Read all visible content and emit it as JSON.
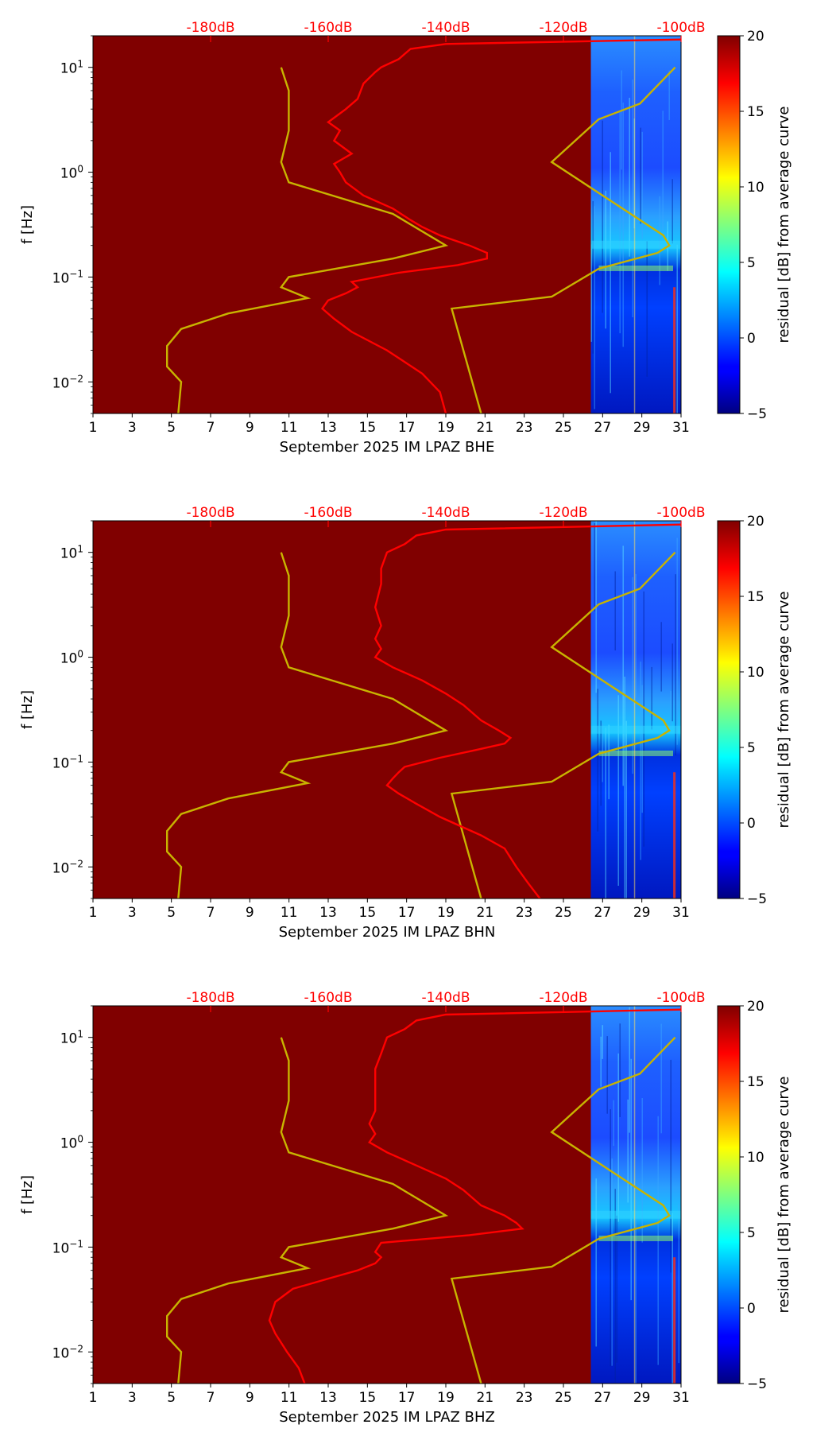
{
  "chart_data": [
    {
      "type": "heatmap",
      "xlabel": "September 2025 IM LPAZ  BHE",
      "ylabel": "f [Hz]",
      "colorbar_label": "residual [dB] from average curve",
      "xlim": [
        1,
        31
      ],
      "ylim": [
        0.005,
        20
      ],
      "yscale": "log",
      "x_ticks": [
        "1",
        "3",
        "5",
        "7",
        "9",
        "11",
        "13",
        "15",
        "17",
        "19",
        "21",
        "23",
        "25",
        "27",
        "29",
        "31"
      ],
      "y_ticks": [
        "10^-2",
        "10^-1",
        "10^0",
        "10^1"
      ],
      "colorbar": {
        "min": -5,
        "max": 20,
        "ticks": [
          "20",
          "15",
          "10",
          "5",
          "0",
          "−5"
        ]
      },
      "top_axis": {
        "ticks": [
          "-180dB",
          "-160dB",
          "-140dB",
          "-120dB",
          "-100dB"
        ],
        "values": [
          -180,
          -160,
          -140,
          -120,
          -100
        ],
        "xlim": [
          -200,
          -100
        ],
        "color": "#ff0000"
      },
      "data_start_day": 26.4,
      "median_psd": [
        [
          18.5,
          -99
        ],
        [
          16.7,
          -140
        ],
        [
          15,
          -146
        ],
        [
          12,
          -148
        ],
        [
          10,
          -151
        ],
        [
          9,
          -152
        ],
        [
          7,
          -154
        ],
        [
          5,
          -155
        ],
        [
          4,
          -157
        ],
        [
          3,
          -160
        ],
        [
          2.5,
          -158
        ],
        [
          2,
          -159
        ],
        [
          1.5,
          -156
        ],
        [
          1.2,
          -159
        ],
        [
          1,
          -158
        ],
        [
          0.8,
          -157
        ],
        [
          0.6,
          -154
        ],
        [
          0.45,
          -149
        ],
        [
          0.35,
          -146
        ],
        [
          0.3,
          -144
        ],
        [
          0.25,
          -141
        ],
        [
          0.2,
          -136
        ],
        [
          0.17,
          -133
        ],
        [
          0.15,
          -133
        ],
        [
          0.13,
          -138
        ],
        [
          0.11,
          -148
        ],
        [
          0.09,
          -156
        ],
        [
          0.08,
          -155
        ],
        [
          0.07,
          -157
        ],
        [
          0.06,
          -160
        ],
        [
          0.05,
          -161
        ],
        [
          0.04,
          -159
        ],
        [
          0.03,
          -156
        ],
        [
          0.02,
          -150
        ],
        [
          0.012,
          -144
        ],
        [
          0.008,
          -141
        ],
        [
          0.005,
          -140
        ]
      ],
      "noise_model_low": [
        [
          10,
          -168.0
        ],
        [
          6,
          -166.7
        ],
        [
          2.5,
          -166.7
        ],
        [
          1.25,
          -168.0
        ],
        [
          0.8,
          -166.7
        ],
        [
          0.4,
          -149
        ],
        [
          0.2,
          -140
        ],
        [
          0.15,
          -149
        ],
        [
          0.1,
          -166.7
        ],
        [
          0.08,
          -168.0
        ],
        [
          0.063,
          -163.5
        ],
        [
          0.045,
          -177.0
        ],
        [
          0.032,
          -185.0
        ],
        [
          0.022,
          -187.4
        ],
        [
          0.014,
          -187.4
        ],
        [
          0.01,
          -185.0
        ],
        [
          0.005,
          -185.5
        ]
      ],
      "noise_model_high": [
        [
          10,
          -101
        ],
        [
          4.5,
          -107
        ],
        [
          3.2,
          -114
        ],
        [
          1.25,
          -122
        ],
        [
          0.25,
          -103
        ],
        [
          0.2,
          -102
        ],
        [
          0.17,
          -104
        ],
        [
          0.12,
          -114
        ],
        [
          0.065,
          -122
        ],
        [
          0.05,
          -139
        ],
        [
          0.005,
          -134
        ]
      ]
    },
    {
      "type": "heatmap",
      "xlabel": "September 2025 IM LPAZ  BHN",
      "ylabel": "f [Hz]",
      "colorbar_label": "residual [dB] from average curve",
      "xlim": [
        1,
        31
      ],
      "ylim": [
        0.005,
        20
      ],
      "yscale": "log",
      "x_ticks": [
        "1",
        "3",
        "5",
        "7",
        "9",
        "11",
        "13",
        "15",
        "17",
        "19",
        "21",
        "23",
        "25",
        "27",
        "29",
        "31"
      ],
      "y_ticks": [
        "10^-2",
        "10^-1",
        "10^0",
        "10^1"
      ],
      "colorbar": {
        "min": -5,
        "max": 20,
        "ticks": [
          "20",
          "15",
          "10",
          "5",
          "0",
          "−5"
        ]
      },
      "top_axis": {
        "ticks": [
          "-180dB",
          "-160dB",
          "-140dB",
          "-120dB",
          "-100dB"
        ],
        "values": [
          -180,
          -160,
          -140,
          -120,
          -100
        ],
        "xlim": [
          -200,
          -100
        ],
        "color": "#ff0000"
      },
      "data_start_day": 26.4,
      "median_psd": [
        [
          18.5,
          -99
        ],
        [
          16.5,
          -140
        ],
        [
          14.5,
          -145
        ],
        [
          12,
          -147
        ],
        [
          10,
          -150
        ],
        [
          7,
          -151
        ],
        [
          5,
          -151
        ],
        [
          3,
          -152
        ],
        [
          2,
          -151
        ],
        [
          1.5,
          -152
        ],
        [
          1.2,
          -151
        ],
        [
          1,
          -152
        ],
        [
          0.8,
          -149
        ],
        [
          0.6,
          -144
        ],
        [
          0.45,
          -140
        ],
        [
          0.35,
          -137
        ],
        [
          0.25,
          -134
        ],
        [
          0.2,
          -131
        ],
        [
          0.17,
          -129
        ],
        [
          0.15,
          -130
        ],
        [
          0.13,
          -135
        ],
        [
          0.11,
          -141
        ],
        [
          0.09,
          -147
        ],
        [
          0.08,
          -148
        ],
        [
          0.07,
          -149
        ],
        [
          0.06,
          -150
        ],
        [
          0.05,
          -148
        ],
        [
          0.04,
          -145
        ],
        [
          0.03,
          -141
        ],
        [
          0.02,
          -134
        ],
        [
          0.015,
          -130
        ],
        [
          0.01,
          -128
        ],
        [
          0.007,
          -126
        ],
        [
          0.005,
          -124
        ]
      ],
      "noise_model_low": [
        [
          10,
          -168.0
        ],
        [
          6,
          -166.7
        ],
        [
          2.5,
          -166.7
        ],
        [
          1.25,
          -168.0
        ],
        [
          0.8,
          -166.7
        ],
        [
          0.4,
          -149
        ],
        [
          0.2,
          -140
        ],
        [
          0.15,
          -149
        ],
        [
          0.1,
          -166.7
        ],
        [
          0.08,
          -168.0
        ],
        [
          0.063,
          -163.5
        ],
        [
          0.045,
          -177.0
        ],
        [
          0.032,
          -185.0
        ],
        [
          0.022,
          -187.4
        ],
        [
          0.014,
          -187.4
        ],
        [
          0.01,
          -185.0
        ],
        [
          0.005,
          -185.5
        ]
      ],
      "noise_model_high": [
        [
          10,
          -101
        ],
        [
          4.5,
          -107
        ],
        [
          3.2,
          -114
        ],
        [
          1.25,
          -122
        ],
        [
          0.25,
          -103
        ],
        [
          0.2,
          -102
        ],
        [
          0.17,
          -104
        ],
        [
          0.12,
          -114
        ],
        [
          0.065,
          -122
        ],
        [
          0.05,
          -139
        ],
        [
          0.005,
          -134
        ]
      ]
    },
    {
      "type": "heatmap",
      "xlabel": "September 2025 IM LPAZ  BHZ",
      "ylabel": "f [Hz]",
      "colorbar_label": "residual [dB] from average curve",
      "xlim": [
        1,
        31
      ],
      "ylim": [
        0.005,
        20
      ],
      "yscale": "log",
      "x_ticks": [
        "1",
        "3",
        "5",
        "7",
        "9",
        "11",
        "13",
        "15",
        "17",
        "19",
        "21",
        "23",
        "25",
        "27",
        "29",
        "31"
      ],
      "y_ticks": [
        "10^-2",
        "10^-1",
        "10^0",
        "10^1"
      ],
      "colorbar": {
        "min": -5,
        "max": 20,
        "ticks": [
          "20",
          "15",
          "10",
          "5",
          "0",
          "−5"
        ]
      },
      "top_axis": {
        "ticks": [
          "-180dB",
          "-160dB",
          "-140dB",
          "-120dB",
          "-100dB"
        ],
        "values": [
          -180,
          -160,
          -140,
          -120,
          -100
        ],
        "xlim": [
          -200,
          -100
        ],
        "color": "#ff0000"
      },
      "data_start_day": 26.4,
      "median_psd": [
        [
          18.5,
          -99
        ],
        [
          16.5,
          -140
        ],
        [
          14.5,
          -145
        ],
        [
          12,
          -147
        ],
        [
          10,
          -150
        ],
        [
          7,
          -151
        ],
        [
          5,
          -152
        ],
        [
          3,
          -152
        ],
        [
          2,
          -152
        ],
        [
          1.5,
          -153
        ],
        [
          1.2,
          -152
        ],
        [
          1,
          -153
        ],
        [
          0.8,
          -150
        ],
        [
          0.6,
          -145
        ],
        [
          0.45,
          -140
        ],
        [
          0.35,
          -137
        ],
        [
          0.25,
          -134
        ],
        [
          0.2,
          -130
        ],
        [
          0.17,
          -128
        ],
        [
          0.15,
          -127
        ],
        [
          0.13,
          -136
        ],
        [
          0.11,
          -151
        ],
        [
          0.09,
          -152
        ],
        [
          0.08,
          -151
        ],
        [
          0.07,
          -152
        ],
        [
          0.06,
          -155
        ],
        [
          0.05,
          -160
        ],
        [
          0.04,
          -166
        ],
        [
          0.03,
          -169
        ],
        [
          0.02,
          -170
        ],
        [
          0.015,
          -169
        ],
        [
          0.01,
          -167
        ],
        [
          0.007,
          -165
        ],
        [
          0.005,
          -164
        ]
      ],
      "noise_model_low": [
        [
          10,
          -168.0
        ],
        [
          6,
          -166.7
        ],
        [
          2.5,
          -166.7
        ],
        [
          1.25,
          -168.0
        ],
        [
          0.8,
          -166.7
        ],
        [
          0.4,
          -149
        ],
        [
          0.2,
          -140
        ],
        [
          0.15,
          -149
        ],
        [
          0.1,
          -166.7
        ],
        [
          0.08,
          -168.0
        ],
        [
          0.063,
          -163.5
        ],
        [
          0.045,
          -177.0
        ],
        [
          0.032,
          -185.0
        ],
        [
          0.022,
          -187.4
        ],
        [
          0.014,
          -187.4
        ],
        [
          0.01,
          -185.0
        ],
        [
          0.005,
          -185.5
        ]
      ],
      "noise_model_high": [
        [
          10,
          -101
        ],
        [
          4.5,
          -107
        ],
        [
          3.2,
          -114
        ],
        [
          1.25,
          -122
        ],
        [
          0.25,
          -103
        ],
        [
          0.2,
          -102
        ],
        [
          0.17,
          -104
        ],
        [
          0.12,
          -114
        ],
        [
          0.065,
          -122
        ],
        [
          0.05,
          -139
        ],
        [
          0.005,
          -134
        ]
      ]
    }
  ],
  "colors": {
    "background_fill": "#800000",
    "median_line": "#ff0000",
    "noise_model_line": "#c8b400",
    "top_axis_text": "#ff0000"
  }
}
